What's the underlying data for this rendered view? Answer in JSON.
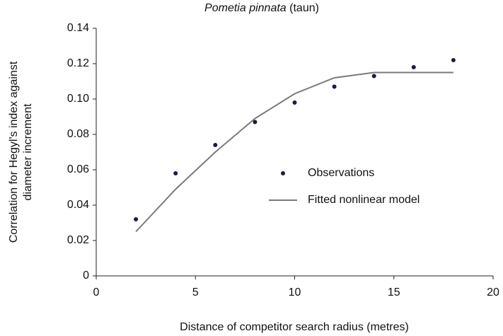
{
  "chart_data": {
    "type": "scatter",
    "title": [
      "Pometia pinnata",
      "(taun)"
    ],
    "xlabel": "Distance of competitor search radius (metres)",
    "ylabel": [
      "Correlation for Hegyl's index against",
      "diameter increment"
    ],
    "x": [
      2,
      4,
      6,
      8,
      10,
      12,
      14,
      16,
      18
    ],
    "series": [
      {
        "name": "Observations",
        "type": "scatter",
        "color": "#1c1c3c",
        "values": [
          0.032,
          0.058,
          0.074,
          0.087,
          0.098,
          0.107,
          0.113,
          0.118,
          0.122
        ]
      },
      {
        "name": "Fitted nonlinear model",
        "type": "line",
        "color": "#7a7a7a",
        "values": [
          0.025,
          0.049,
          0.07,
          0.089,
          0.103,
          0.112,
          0.115,
          0.115,
          0.115
        ]
      }
    ],
    "xlim": [
      0,
      20
    ],
    "xticks": [
      0,
      5,
      10,
      15,
      20
    ],
    "ylim": [
      0,
      0.14
    ],
    "yticks": [
      0,
      0.02,
      0.04,
      0.06,
      0.08,
      {
        "value": 0.1,
        "label": "0.10"
      },
      0.12,
      0.14
    ],
    "legend": "center right",
    "grid": false
  }
}
